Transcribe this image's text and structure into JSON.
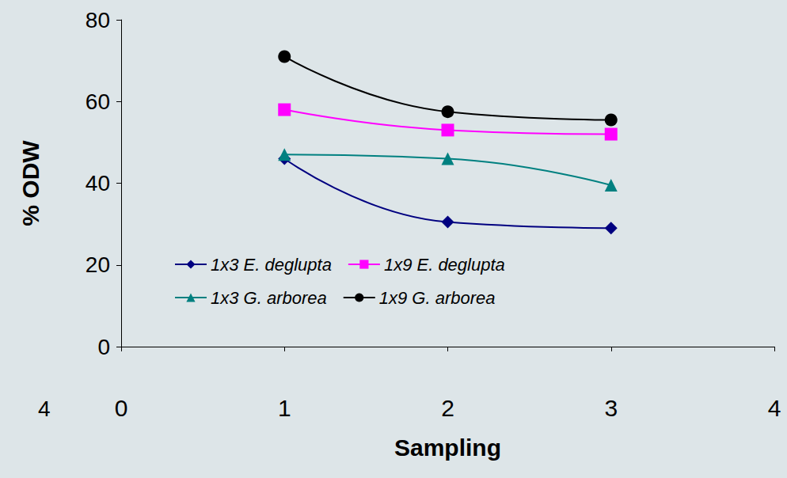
{
  "chart_data": {
    "type": "line",
    "x_label": "Sampling",
    "y_label": "% ODW",
    "x": [
      1,
      2,
      3
    ],
    "series": [
      {
        "name": "1x3 E. deglupta",
        "color": "#000080",
        "marker": "diamond",
        "values": [
          46,
          30.5,
          29
        ]
      },
      {
        "name": "1x9 E. deglupta",
        "color": "#ff00ff",
        "marker": "square",
        "values": [
          58,
          53,
          52
        ]
      },
      {
        "name": "1x3 G. arborea",
        "color": "#008080",
        "marker": "triangle",
        "values": [
          47,
          46,
          39.5
        ]
      },
      {
        "name": "1x9 G. arborea",
        "color": "#000000",
        "marker": "circle",
        "values": [
          71,
          57.5,
          55.5
        ]
      }
    ],
    "xlim": [
      0,
      4
    ],
    "xticks": [
      0,
      1,
      2,
      3,
      4
    ],
    "ylim": [
      0,
      80
    ],
    "yticks": [
      0,
      20,
      40,
      60,
      80
    ],
    "grid": false,
    "legend": "lower left",
    "annotations": [
      {
        "text": "4"
      }
    ]
  }
}
